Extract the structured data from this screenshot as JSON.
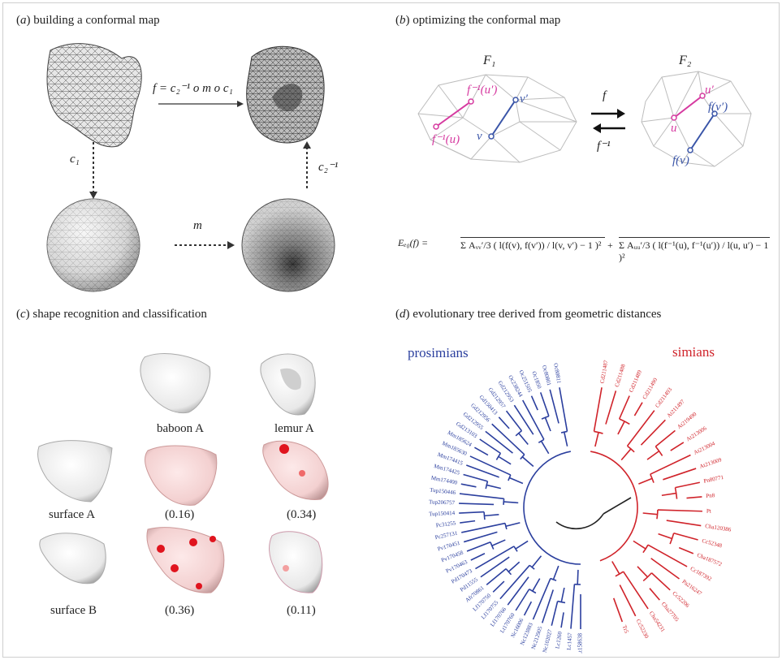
{
  "panel_a": {
    "letter": "a",
    "title": "building a conformal map",
    "map_formula": "f = c₂⁻¹ o m o c₁",
    "c1_label": "c₁",
    "m_label": "m",
    "c2inv_label": "c₂⁻¹"
  },
  "panel_b": {
    "letter": "b",
    "title": "optimizing the conformal map",
    "F1": "F₁",
    "F2": "F₂",
    "f": "f",
    "finv": "f⁻¹",
    "u_prime_left": "f⁻¹(u′)",
    "u_left": "f⁻¹(u)",
    "v_prime_left": "v′",
    "v_left": "v",
    "u_prime_right": "u′",
    "u_right": "u",
    "fv_prime_right": "f(v′)",
    "fv_right": "f(v)",
    "energy_lhs": "Eₑ₀(f) =",
    "energy_term1": "Σ Aᵥᵥ′/3 ( l(f(v), f(v′)) / l(v, v′) − 1 )²",
    "energy_term2": "Σ Aᵤᵤ′/3 ( l(f⁻¹(u), f⁻¹(u′)) / l(u, u′) − 1 )²"
  },
  "panel_c": {
    "letter": "c",
    "title": "shape recognition and classification",
    "baboon": "baboon A",
    "lemur": "lemur A",
    "surfaceA": "surface A",
    "surfaceB": "surface B",
    "v1": "(0.16)",
    "v2": "(0.34)",
    "v3": "(0.36)",
    "v4": "(0.11)"
  },
  "panel_d": {
    "letter": "d",
    "title": "evolutionary tree derived from geometric distances",
    "prosimians": "prosimians",
    "simians": "simians",
    "blue_color": "#2b3f9e",
    "red_color": "#d0232a",
    "blue_leaves": [
      "Oc80811",
      "Oc80801",
      "Oc1850",
      "Oc251505",
      "Oc238244",
      "Gd212953",
      "Gd212957",
      "Gd150413",
      "Gd212956",
      "Gd212955",
      "Gd213103",
      "Mm185624",
      "Mm185630",
      "Mm174415",
      "Mm174425",
      "Mm174400",
      "Tup150446",
      "Tup206757",
      "Tup150414",
      "Pc31255",
      "Pc257131",
      "Pv170451",
      "Pv170458",
      "Pv170463",
      "Pd170473",
      "Pd11555",
      "Afr70861",
      "Lf170750",
      "Lf170755",
      "Lf170766",
      "Lt170760",
      "Nc16006",
      "Nc123883",
      "Nc212905",
      "Nc102027",
      "Lc1260",
      "Lc1457",
      "Lt158638"
    ],
    "red_leaves": [
      "Cd211487",
      "Cd211488",
      "Cd211489",
      "Cd211490",
      "Cd211493",
      "At211497",
      "At219490",
      "At213006",
      "At213004",
      "At213009",
      "Pn80771",
      "Pn8",
      "Pt",
      "Cha120386",
      "Cc52348",
      "Cha187572",
      "Cc187392",
      "Pa216247",
      "Cc52206",
      "Cha27705",
      "Cha54231",
      "Cc52230",
      "Tr5"
    ]
  }
}
